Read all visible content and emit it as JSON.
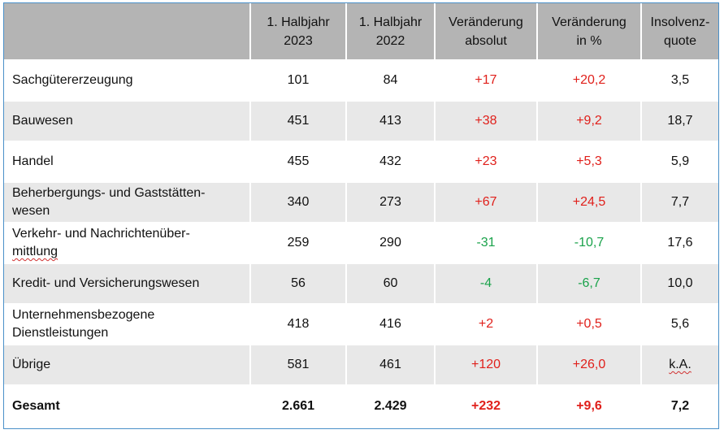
{
  "headers": [
    "",
    "1. Halbjahr 2023",
    "1. Halbjahr 2022",
    "Veränderung absolut",
    "Veränderung in %",
    "Insolvenz-quote"
  ],
  "header_lines": [
    [
      "",
      ""
    ],
    [
      "1. Halbjahr",
      "2023"
    ],
    [
      "1. Halbjahr",
      "2022"
    ],
    [
      "Veränderung",
      "absolut"
    ],
    [
      "Veränderung",
      "in %"
    ],
    [
      "Insolvenz-",
      "quote"
    ]
  ],
  "rows": [
    {
      "label_lines": [
        "Sachgütererzeugung"
      ],
      "h2023": "101",
      "h2022": "84",
      "abs": "+17",
      "pct": "+20,2",
      "quote": "3,5"
    },
    {
      "label_lines": [
        "Bauwesen"
      ],
      "h2023": "451",
      "h2022": "413",
      "abs": "+38",
      "pct": "+9,2",
      "quote": "18,7"
    },
    {
      "label_lines": [
        "Handel"
      ],
      "h2023": "455",
      "h2022": "432",
      "abs": "+23",
      "pct": "+5,3",
      "quote": "5,9"
    },
    {
      "label_lines": [
        "Beherbergungs- und Gaststätten-",
        "wesen"
      ],
      "h2023": "340",
      "h2022": "273",
      "abs": "+67",
      "pct": "+24,5",
      "quote": "7,7"
    },
    {
      "label_lines": [
        "Verkehr- und Nachrichtenüber-",
        "mittlung"
      ],
      "h2023": "259",
      "h2022": "290",
      "abs": "-31",
      "pct": "-10,7",
      "quote": "17,6"
    },
    {
      "label_lines": [
        "Kredit- und Versicherungswesen"
      ],
      "h2023": "56",
      "h2022": "60",
      "abs": "-4",
      "pct": "-6,7",
      "quote": "10,0"
    },
    {
      "label_lines": [
        "Unternehmensbezogene",
        "Dienstleistungen"
      ],
      "h2023": "418",
      "h2022": "416",
      "abs": "+2",
      "pct": "+0,5",
      "quote": "5,6"
    },
    {
      "label_lines": [
        "Übrige"
      ],
      "h2023": "581",
      "h2022": "461",
      "abs": "+120",
      "pct": "+26,0",
      "quote": "k.A."
    }
  ],
  "total": {
    "label": "Gesamt",
    "h2023": "2.661",
    "h2022": "2.429",
    "abs": "+232",
    "pct": "+9,6",
    "quote": "7,2"
  },
  "colors": {
    "positive": "#e0201b",
    "negative": "#19a24a",
    "header_bg": "#b4b4b4",
    "stripe_bg": "#e8e8e8",
    "frame": "#4a90c8"
  }
}
